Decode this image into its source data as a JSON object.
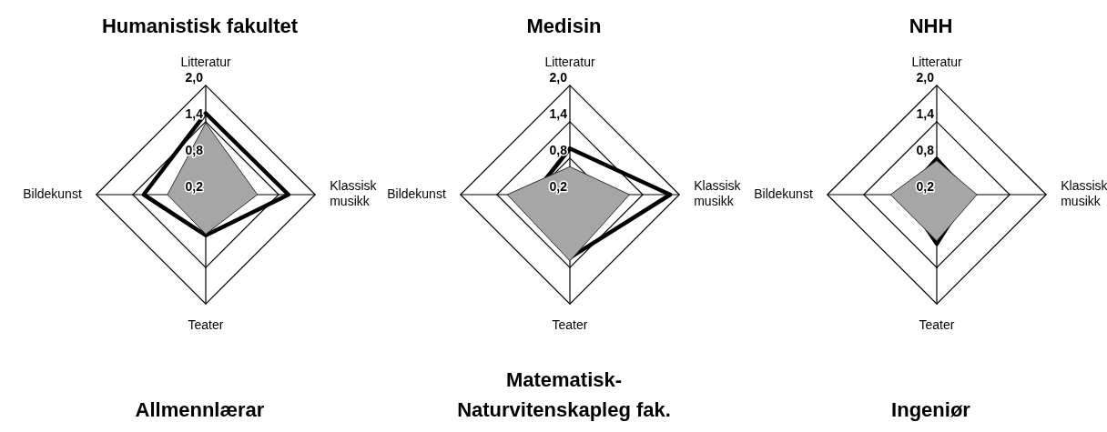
{
  "chart_data": [
    {
      "type": "radar",
      "title": "Humanistisk fakultet",
      "categories": [
        "Litteratur",
        "Klassisk musikk",
        "Teater",
        "Bildekunst"
      ],
      "ylim": [
        0.2,
        2.0
      ],
      "yticks": [
        {
          "value": 0.2,
          "label": "0,2"
        },
        {
          "value": 0.8,
          "label": "0,8"
        },
        {
          "value": 1.4,
          "label": "1,4"
        },
        {
          "value": 2.0,
          "label": "2,0"
        }
      ],
      "grid": true,
      "legend": false,
      "marker": "none",
      "series": [
        {
          "color": "#a6a6a6",
          "values": [
            1.38,
            1.05,
            0.85,
            0.83
          ]
        },
        {
          "color": "#000000",
          "values": [
            1.54,
            1.56,
            0.87,
            1.22
          ]
        }
      ]
    },
    {
      "type": "radar",
      "title": "Medisin",
      "categories": [
        "Litteratur",
        "Klassisk musikk",
        "Teater",
        "Bildekunst"
      ],
      "ylim": [
        0.2,
        2.0
      ],
      "yticks": [
        {
          "value": 0.2,
          "label": "0,2"
        },
        {
          "value": 0.8,
          "label": "0,8"
        },
        {
          "value": 1.4,
          "label": "1,4"
        },
        {
          "value": 2.0,
          "label": "2,0"
        }
      ],
      "grid": true,
      "legend": false,
      "marker": "none",
      "series": [
        {
          "color": "#a6a6a6",
          "values": [
            0.66,
            1.18,
            1.29,
            1.23
          ]
        },
        {
          "color": "#000000",
          "values": [
            0.96,
            1.85,
            1.24,
            0.8
          ]
        }
      ]
    },
    {
      "type": "radar",
      "title": "NHH",
      "categories": [
        "Litteratur",
        "Klassisk musikk",
        "Teater",
        "Bildekunst"
      ],
      "ylim": [
        0.2,
        2.0
      ],
      "yticks": [
        {
          "value": 0.2,
          "label": "0,2"
        },
        {
          "value": 0.8,
          "label": "0,8"
        },
        {
          "value": 1.4,
          "label": "1,4"
        },
        {
          "value": 2.0,
          "label": "2,0"
        }
      ],
      "grid": true,
      "legend": false,
      "marker": "none",
      "series": [
        {
          "color": "#a6a6a6",
          "values": [
            0.76,
            0.86,
            0.96,
            0.96
          ]
        },
        {
          "color": "#000000",
          "values": [
            0.79,
            0.71,
            1.01,
            0.73
          ]
        }
      ]
    },
    {
      "type": "other",
      "title": "Allmennlærar"
    },
    {
      "type": "other",
      "title": "Matematisk-Naturvitenskapleg fak."
    },
    {
      "type": "other",
      "title": "Ingeniør"
    }
  ]
}
